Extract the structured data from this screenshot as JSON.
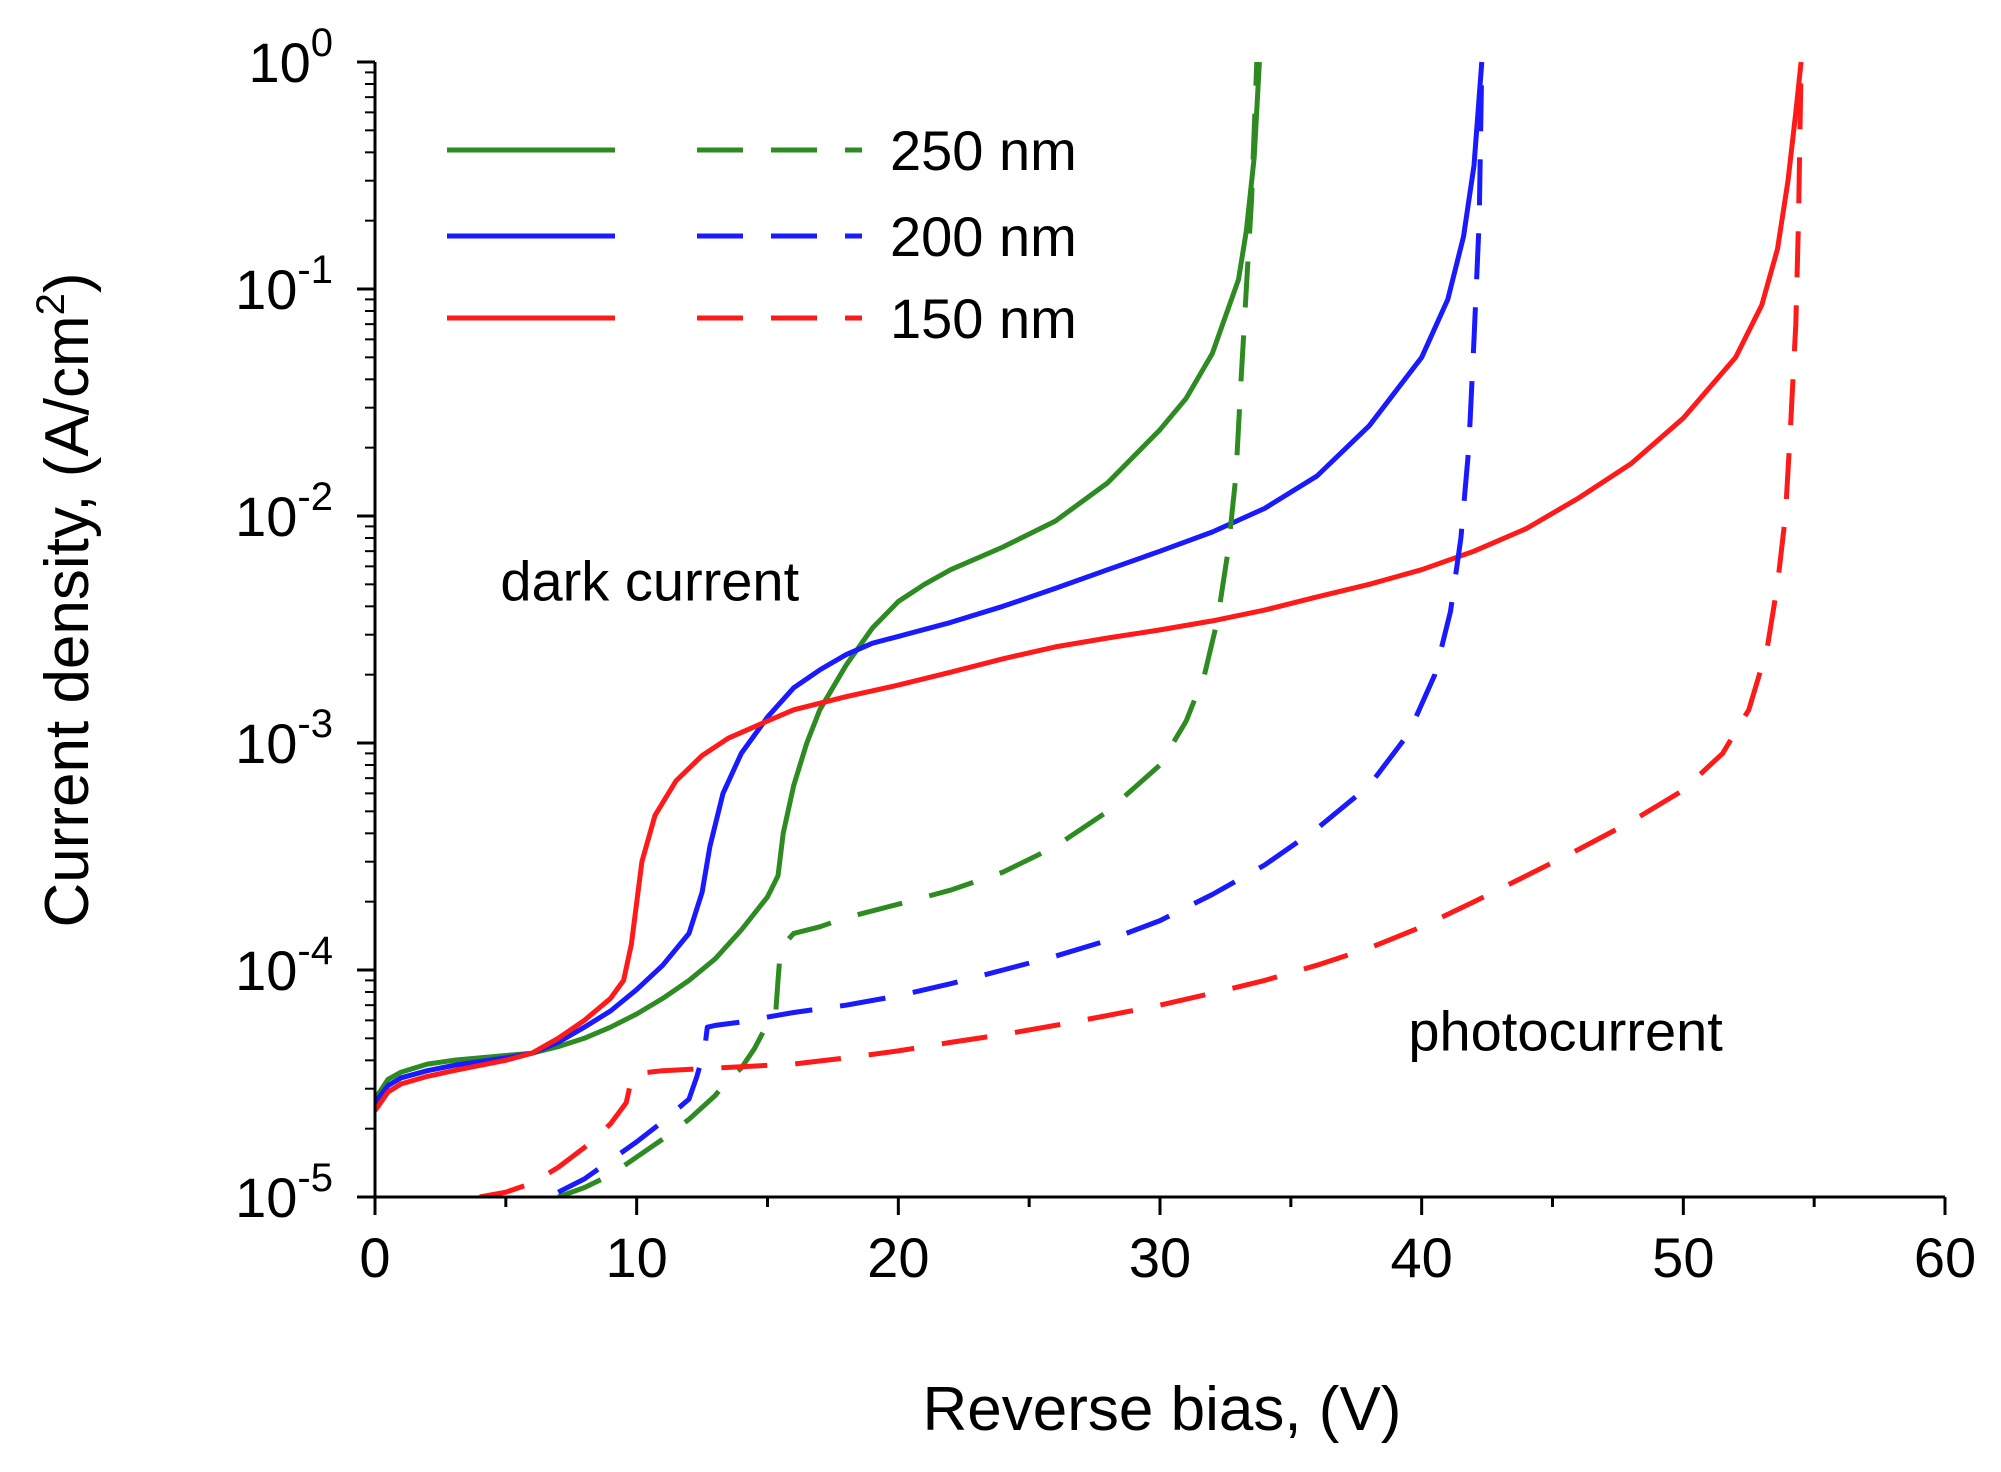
{
  "chart_data": {
    "type": "line",
    "title": "",
    "xlabel": "Reverse bias, (V)",
    "ylabel_main": "Current density, (A/cm",
    "ylabel_sup": "2",
    "ylabel_close": ")",
    "xscale": "linear",
    "yscale": "log",
    "xlim": [
      0,
      60
    ],
    "ylim": [
      1e-05,
      1
    ],
    "xticks": [
      0,
      10,
      20,
      30,
      40,
      50,
      60
    ],
    "xtick_labels": [
      "0",
      "10",
      "20",
      "30",
      "40",
      "50",
      "60"
    ],
    "yticks": [
      {
        "value": 1e-05,
        "base": "10",
        "exp": "-5"
      },
      {
        "value": 0.0001,
        "base": "10",
        "exp": "-4"
      },
      {
        "value": 0.001,
        "base": "10",
        "exp": "-3"
      },
      {
        "value": 0.01,
        "base": "10",
        "exp": "-2"
      },
      {
        "value": 0.1,
        "base": "10",
        "exp": "-1"
      },
      {
        "value": 1,
        "base": "10",
        "exp": "0"
      }
    ],
    "legend_position": "top-left",
    "legend": [
      {
        "label": "250 nm",
        "color": "#2e8b22"
      },
      {
        "label": "200 nm",
        "color": "#1a1aff"
      },
      {
        "label": "150 nm",
        "color": "#ff1a1a"
      }
    ],
    "annotations": [
      {
        "text": "dark current",
        "x": 10.5,
        "y": 0.0052
      },
      {
        "text": "photocurrent",
        "x": 45.5,
        "y": 5.4e-05
      }
    ],
    "series": [
      {
        "name": "250 nm dark current",
        "thickness": "250 nm",
        "kind": "dark",
        "color": "#2e8b22",
        "dash": "solid",
        "points": [
          [
            0,
            2.7e-05
          ],
          [
            0.5,
            3.3e-05
          ],
          [
            1,
            3.55e-05
          ],
          [
            2,
            3.85e-05
          ],
          [
            3,
            4e-05
          ],
          [
            4,
            4.1e-05
          ],
          [
            5,
            4.2e-05
          ],
          [
            6,
            4.3e-05
          ],
          [
            7,
            4.6e-05
          ],
          [
            8,
            5e-05
          ],
          [
            9,
            5.6e-05
          ],
          [
            10,
            6.4e-05
          ],
          [
            11,
            7.5e-05
          ],
          [
            12,
            9e-05
          ],
          [
            13,
            0.000112
          ],
          [
            14,
            0.00015
          ],
          [
            15,
            0.00021
          ],
          [
            15.4,
            0.00026
          ],
          [
            15.6,
            0.0004
          ],
          [
            16,
            0.00065
          ],
          [
            16.5,
            0.001
          ],
          [
            17,
            0.0014
          ],
          [
            18,
            0.0022
          ],
          [
            19,
            0.0032
          ],
          [
            20,
            0.0042
          ],
          [
            21,
            0.005
          ],
          [
            22,
            0.0058
          ],
          [
            24,
            0.0073
          ],
          [
            26,
            0.0095
          ],
          [
            28,
            0.014
          ],
          [
            30,
            0.024
          ],
          [
            31,
            0.033
          ],
          [
            32,
            0.052
          ],
          [
            33,
            0.11
          ],
          [
            33.3,
            0.18
          ],
          [
            33.6,
            0.38
          ],
          [
            33.8,
            1.0
          ]
        ]
      },
      {
        "name": "200 nm dark current",
        "thickness": "200 nm",
        "kind": "dark",
        "color": "#1a1aff",
        "dash": "solid",
        "points": [
          [
            0,
            2.6e-05
          ],
          [
            0.5,
            3.1e-05
          ],
          [
            1,
            3.35e-05
          ],
          [
            2,
            3.6e-05
          ],
          [
            3,
            3.8e-05
          ],
          [
            4,
            3.95e-05
          ],
          [
            5,
            4.1e-05
          ],
          [
            6,
            4.3e-05
          ],
          [
            7,
            4.8e-05
          ],
          [
            8,
            5.6e-05
          ],
          [
            9,
            6.6e-05
          ],
          [
            10,
            8.2e-05
          ],
          [
            11,
            0.000105
          ],
          [
            12,
            0.000145
          ],
          [
            12.5,
            0.00022
          ],
          [
            12.8,
            0.00035
          ],
          [
            13.3,
            0.0006
          ],
          [
            14,
            0.0009
          ],
          [
            15,
            0.0013
          ],
          [
            16,
            0.00175
          ],
          [
            17,
            0.0021
          ],
          [
            18,
            0.00245
          ],
          [
            19,
            0.00275
          ],
          [
            20,
            0.00295
          ],
          [
            22,
            0.0034
          ],
          [
            24,
            0.004
          ],
          [
            26,
            0.0048
          ],
          [
            28,
            0.0058
          ],
          [
            30,
            0.007
          ],
          [
            32,
            0.0085
          ],
          [
            34,
            0.0108
          ],
          [
            36,
            0.015
          ],
          [
            38,
            0.025
          ],
          [
            40,
            0.05
          ],
          [
            41,
            0.09
          ],
          [
            41.6,
            0.17
          ],
          [
            42,
            0.35
          ],
          [
            42.3,
            1.0
          ]
        ]
      },
      {
        "name": "150 nm dark current",
        "thickness": "150 nm",
        "kind": "dark",
        "color": "#ff1a1a",
        "dash": "solid",
        "points": [
          [
            0,
            2.4e-05
          ],
          [
            0.5,
            2.9e-05
          ],
          [
            1,
            3.15e-05
          ],
          [
            2,
            3.4e-05
          ],
          [
            3,
            3.6e-05
          ],
          [
            4,
            3.8e-05
          ],
          [
            5,
            4e-05
          ],
          [
            6,
            4.3e-05
          ],
          [
            7,
            5e-05
          ],
          [
            8,
            6e-05
          ],
          [
            9,
            7.5e-05
          ],
          [
            9.5,
            9e-05
          ],
          [
            9.8,
            0.00013
          ],
          [
            10.2,
            0.0003
          ],
          [
            10.7,
            0.00048
          ],
          [
            11.5,
            0.00068
          ],
          [
            12.5,
            0.00088
          ],
          [
            13.5,
            0.00105
          ],
          [
            15,
            0.00125
          ],
          [
            16,
            0.0014
          ],
          [
            18,
            0.0016
          ],
          [
            20,
            0.0018
          ],
          [
            22,
            0.00205
          ],
          [
            24,
            0.00235
          ],
          [
            26,
            0.00265
          ],
          [
            28,
            0.0029
          ],
          [
            30,
            0.00315
          ],
          [
            32,
            0.00345
          ],
          [
            34,
            0.00385
          ],
          [
            36,
            0.0044
          ],
          [
            38,
            0.005
          ],
          [
            40,
            0.0058
          ],
          [
            42,
            0.007
          ],
          [
            44,
            0.0088
          ],
          [
            46,
            0.012
          ],
          [
            48,
            0.017
          ],
          [
            50,
            0.027
          ],
          [
            52,
            0.05
          ],
          [
            53,
            0.085
          ],
          [
            53.6,
            0.15
          ],
          [
            54,
            0.3
          ],
          [
            54.3,
            0.6
          ],
          [
            54.5,
            1.0
          ]
        ]
      },
      {
        "name": "250 nm photocurrent",
        "thickness": "250 nm",
        "kind": "photo",
        "color": "#2e8b22",
        "dash": "dashed",
        "points": [
          [
            7,
            1e-05
          ],
          [
            8,
            1.1e-05
          ],
          [
            9,
            1.25e-05
          ],
          [
            10,
            1.5e-05
          ],
          [
            11,
            1.8e-05
          ],
          [
            12,
            2.2e-05
          ],
          [
            13,
            2.8e-05
          ],
          [
            13.5,
            3.3e-05
          ],
          [
            14,
            3.7e-05
          ],
          [
            14.5,
            4.5e-05
          ],
          [
            15,
            5.8e-05
          ],
          [
            15.3,
            6.2e-05
          ],
          [
            15.4,
            9e-05
          ],
          [
            15.5,
            0.000125
          ],
          [
            16,
            0.000145
          ],
          [
            17,
            0.000155
          ],
          [
            18,
            0.00017
          ],
          [
            20,
            0.000195
          ],
          [
            22,
            0.000225
          ],
          [
            24,
            0.00027
          ],
          [
            26,
            0.00035
          ],
          [
            28,
            0.0005
          ],
          [
            30,
            0.0008
          ],
          [
            31,
            0.00125
          ],
          [
            31.7,
            0.002
          ],
          [
            32.2,
            0.0035
          ],
          [
            32.6,
            0.007
          ],
          [
            32.9,
            0.015
          ],
          [
            33.1,
            0.04
          ],
          [
            33.3,
            0.1
          ],
          [
            33.5,
            0.25
          ],
          [
            33.7,
            1.0
          ]
        ]
      },
      {
        "name": "200 nm photocurrent",
        "thickness": "200 nm",
        "kind": "photo",
        "color": "#1a1aff",
        "dash": "dashed",
        "points": [
          [
            7,
            1.05e-05
          ],
          [
            8,
            1.2e-05
          ],
          [
            9,
            1.45e-05
          ],
          [
            10,
            1.75e-05
          ],
          [
            11,
            2.15e-05
          ],
          [
            12,
            2.7e-05
          ],
          [
            12.3,
            3.4e-05
          ],
          [
            12.6,
            4.5e-05
          ],
          [
            12.7,
            5.6e-05
          ],
          [
            13,
            5.7e-05
          ],
          [
            14,
            5.9e-05
          ],
          [
            15,
            6.2e-05
          ],
          [
            16,
            6.5e-05
          ],
          [
            18,
            7e-05
          ],
          [
            20,
            7.7e-05
          ],
          [
            22,
            8.7e-05
          ],
          [
            24,
            0.0001
          ],
          [
            26,
            0.000115
          ],
          [
            28,
            0.000135
          ],
          [
            30,
            0.000165
          ],
          [
            32,
            0.000215
          ],
          [
            34,
            0.00029
          ],
          [
            36,
            0.00042
          ],
          [
            38,
            0.00065
          ],
          [
            39.5,
            0.0011
          ],
          [
            40.5,
            0.002
          ],
          [
            41.1,
            0.0038
          ],
          [
            41.5,
            0.008
          ],
          [
            41.8,
            0.02
          ],
          [
            42,
            0.06
          ],
          [
            42.2,
            0.2
          ],
          [
            42.3,
            1.0
          ]
        ]
      },
      {
        "name": "150 nm photocurrent",
        "thickness": "150 nm",
        "kind": "photo",
        "color": "#ff1a1a",
        "dash": "dashed",
        "points": [
          [
            4,
            1e-05
          ],
          [
            5,
            1.05e-05
          ],
          [
            6,
            1.15e-05
          ],
          [
            7,
            1.35e-05
          ],
          [
            8,
            1.65e-05
          ],
          [
            9,
            2.1e-05
          ],
          [
            9.6,
            2.6e-05
          ],
          [
            9.8,
            3.3e-05
          ],
          [
            10,
            3.5e-05
          ],
          [
            11,
            3.6e-05
          ],
          [
            12,
            3.65e-05
          ],
          [
            14,
            3.75e-05
          ],
          [
            16,
            3.85e-05
          ],
          [
            18,
            4.1e-05
          ],
          [
            20,
            4.4e-05
          ],
          [
            22,
            4.8e-05
          ],
          [
            24,
            5.2e-05
          ],
          [
            26,
            5.7e-05
          ],
          [
            28,
            6.3e-05
          ],
          [
            30,
            7e-05
          ],
          [
            32,
            7.9e-05
          ],
          [
            34,
            9e-05
          ],
          [
            36,
            0.000105
          ],
          [
            38,
            0.000125
          ],
          [
            40,
            0.000155
          ],
          [
            42,
            0.0002
          ],
          [
            44,
            0.00026
          ],
          [
            46,
            0.00034
          ],
          [
            48,
            0.00045
          ],
          [
            50,
            0.00062
          ],
          [
            51.5,
            0.0009
          ],
          [
            52.5,
            0.0014
          ],
          [
            53.2,
            0.0026
          ],
          [
            53.6,
            0.005
          ],
          [
            53.9,
            0.01
          ],
          [
            54.1,
            0.025
          ],
          [
            54.3,
            0.07
          ],
          [
            54.4,
            0.2
          ],
          [
            54.5,
            1.0
          ]
        ]
      }
    ]
  }
}
